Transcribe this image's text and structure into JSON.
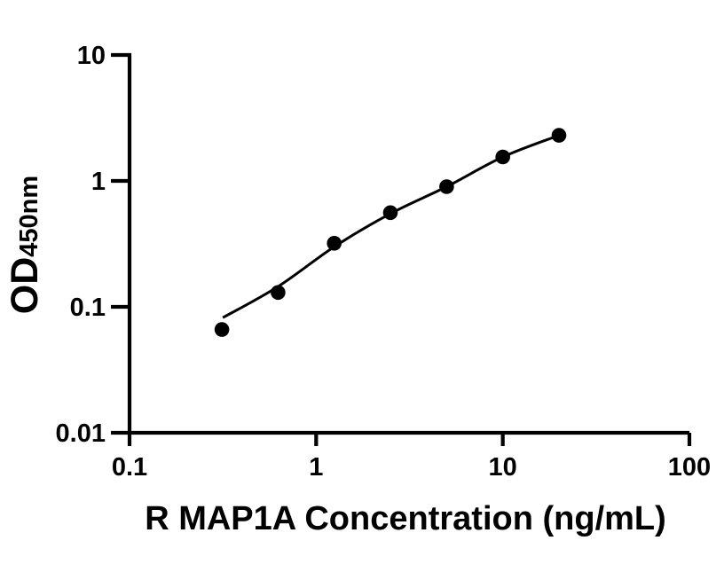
{
  "chart_data": {
    "type": "scatter",
    "title": "",
    "xlabel": "R MAP1A Concentration (ng/mL)",
    "ylabel": "OD",
    "ylabel_subscript": "450nm",
    "xscale": "log",
    "yscale": "log",
    "xlim": [
      0.1,
      100
    ],
    "ylim": [
      0.01,
      10
    ],
    "x_tick_values": [
      0.1,
      1,
      10,
      100
    ],
    "x_tick_labels": [
      "0.1",
      "1",
      "10",
      "100"
    ],
    "y_tick_values": [
      0.01,
      0.1,
      1,
      10
    ],
    "y_tick_labels": [
      "0.01",
      "0.1",
      "1",
      "10"
    ],
    "grid": false,
    "legend": false,
    "axis_color": "#000000",
    "series": [
      {
        "name": "standard points",
        "type": "scatter",
        "marker": "circle",
        "color": "#000000",
        "x": [
          0.3125,
          0.625,
          1.25,
          2.5,
          5,
          10,
          20
        ],
        "y": [
          0.066,
          0.13,
          0.32,
          0.56,
          0.9,
          1.55,
          2.3
        ]
      },
      {
        "name": "fit curve",
        "type": "line",
        "color": "#000000",
        "x": [
          0.316,
          0.625,
          1.25,
          2.5,
          5,
          10,
          20
        ],
        "y": [
          0.082,
          0.145,
          0.3,
          0.55,
          0.9,
          1.55,
          2.3
        ]
      }
    ]
  }
}
